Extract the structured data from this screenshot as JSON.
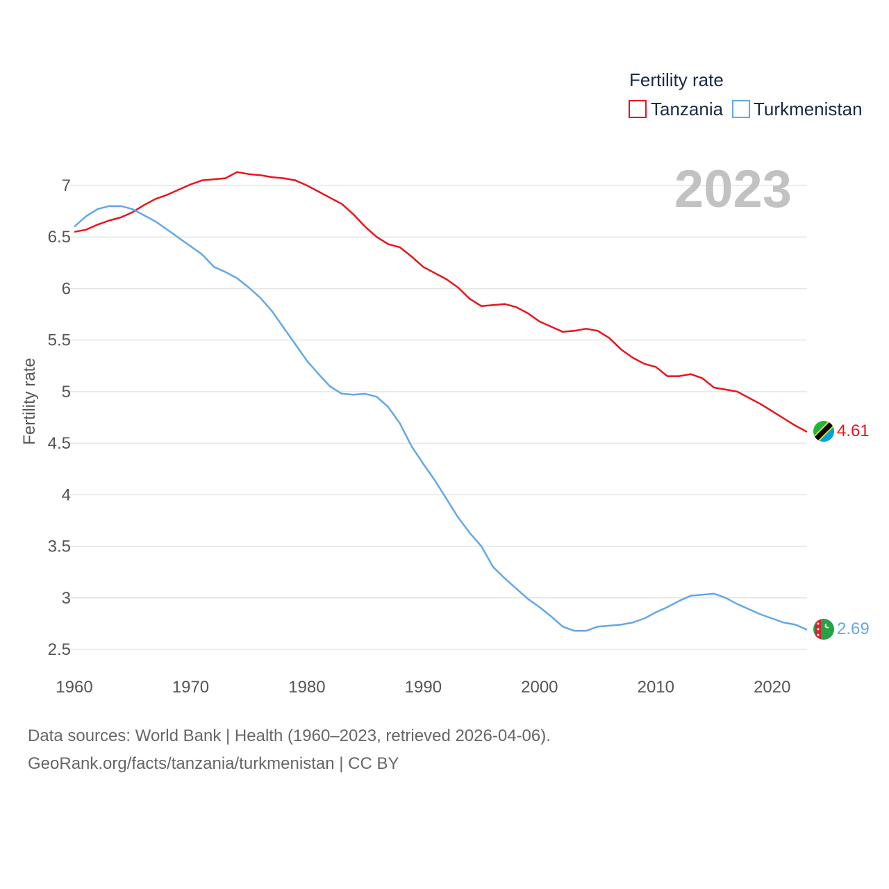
{
  "chart_data": {
    "type": "line",
    "legend_title": "Fertility rate",
    "ylabel": "Fertility rate",
    "current_year": "2023",
    "xlim": [
      1960,
      2023
    ],
    "ylim": [
      2.4,
      7.3
    ],
    "x_ticks": [
      1960,
      1970,
      1980,
      1990,
      2000,
      2010,
      2020
    ],
    "y_ticks": [
      2.5,
      3,
      3.5,
      4,
      4.5,
      5,
      5.5,
      6,
      6.5,
      7
    ],
    "series": [
      {
        "name": "Tanzania",
        "color": "#e8151b",
        "end_label": "4.61",
        "flag_icon": "tanzania-flag-icon",
        "x": [
          1960,
          1961,
          1962,
          1963,
          1964,
          1965,
          1966,
          1967,
          1968,
          1969,
          1970,
          1971,
          1972,
          1973,
          1974,
          1975,
          1976,
          1977,
          1978,
          1979,
          1980,
          1981,
          1982,
          1983,
          1984,
          1985,
          1986,
          1987,
          1988,
          1989,
          1990,
          1991,
          1992,
          1993,
          1994,
          1995,
          1996,
          1997,
          1998,
          1999,
          2000,
          2001,
          2002,
          2003,
          2004,
          2005,
          2006,
          2007,
          2008,
          2009,
          2010,
          2011,
          2012,
          2013,
          2014,
          2015,
          2016,
          2017,
          2018,
          2019,
          2020,
          2021,
          2022,
          2023
        ],
        "values": [
          6.55,
          6.57,
          6.62,
          6.66,
          6.69,
          6.74,
          6.81,
          6.87,
          6.91,
          6.96,
          7.01,
          7.05,
          7.06,
          7.07,
          7.13,
          7.11,
          7.1,
          7.08,
          7.07,
          7.05,
          7.0,
          6.94,
          6.88,
          6.82,
          6.72,
          6.6,
          6.5,
          6.43,
          6.4,
          6.31,
          6.21,
          6.15,
          6.09,
          6.01,
          5.9,
          5.83,
          5.84,
          5.85,
          5.82,
          5.76,
          5.68,
          5.63,
          5.58,
          5.59,
          5.61,
          5.59,
          5.52,
          5.41,
          5.33,
          5.27,
          5.24,
          5.15,
          5.15,
          5.17,
          5.13,
          5.04,
          5.02,
          5.0,
          4.94,
          4.88,
          4.81,
          4.74,
          4.67,
          4.61
        ]
      },
      {
        "name": "Turkmenistan",
        "color": "#62a8e8",
        "end_label": "2.69",
        "flag_icon": "turkmenistan-flag-icon",
        "x": [
          1960,
          1961,
          1962,
          1963,
          1964,
          1965,
          1966,
          1967,
          1968,
          1969,
          1970,
          1971,
          1972,
          1973,
          1974,
          1975,
          1976,
          1977,
          1978,
          1979,
          1980,
          1981,
          1982,
          1983,
          1984,
          1985,
          1986,
          1987,
          1988,
          1989,
          1990,
          1991,
          1992,
          1993,
          1994,
          1995,
          1996,
          1997,
          1998,
          1999,
          2000,
          2001,
          2002,
          2003,
          2004,
          2005,
          2006,
          2007,
          2008,
          2009,
          2010,
          2011,
          2012,
          2013,
          2014,
          2015,
          2016,
          2017,
          2018,
          2019,
          2020,
          2021,
          2022,
          2023
        ],
        "values": [
          6.6,
          6.7,
          6.77,
          6.8,
          6.8,
          6.77,
          6.71,
          6.65,
          6.57,
          6.49,
          6.41,
          6.33,
          6.21,
          6.16,
          6.1,
          6.01,
          5.91,
          5.78,
          5.62,
          5.46,
          5.3,
          5.17,
          5.05,
          4.98,
          4.97,
          4.98,
          4.95,
          4.85,
          4.69,
          4.47,
          4.3,
          4.14,
          3.96,
          3.78,
          3.63,
          3.5,
          3.3,
          3.19,
          3.09,
          2.99,
          2.91,
          2.82,
          2.72,
          2.68,
          2.68,
          2.72,
          2.73,
          2.74,
          2.76,
          2.8,
          2.86,
          2.91,
          2.97,
          3.02,
          3.03,
          3.04,
          3.0,
          2.94,
          2.89,
          2.84,
          2.8,
          2.76,
          2.74,
          2.69
        ]
      }
    ]
  },
  "source": {
    "line1": "Data sources: World Bank | Health (1960–2023, retrieved 2026-04-06).",
    "line2": "GeoRank.org/facts/tanzania/turkmenistan | CC BY"
  }
}
